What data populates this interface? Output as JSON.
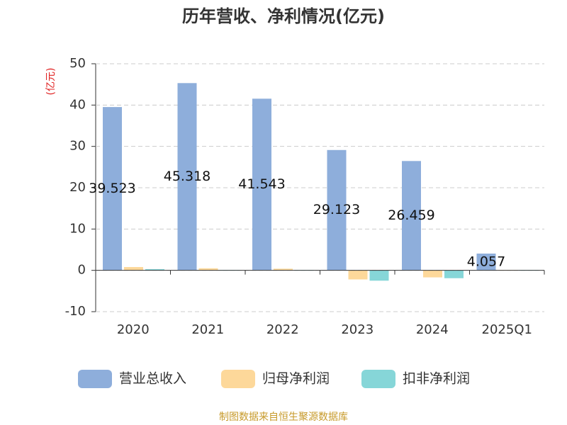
{
  "chart_data": {
    "type": "bar",
    "title": "历年营收、净利情况(亿元)",
    "y_label": "(亿元)",
    "categories": [
      "2020",
      "2021",
      "2022",
      "2023",
      "2024",
      "2025Q1"
    ],
    "series": [
      {
        "name": "营业总收入",
        "color": "#8eaedb",
        "values": [
          39.523,
          45.318,
          41.543,
          29.123,
          26.459,
          4.057
        ],
        "labels": true
      },
      {
        "name": "归母净利润",
        "color": "#fdd89a",
        "values": [
          0.8,
          0.5,
          0.4,
          -2.2,
          -1.7,
          0.1
        ]
      },
      {
        "name": "扣非净利润",
        "color": "#86d6d8",
        "values": [
          0.3,
          0.1,
          0.1,
          -2.5,
          -1.9,
          0.1
        ]
      }
    ],
    "ylim": [
      -10,
      50
    ],
    "yticks": [
      -10,
      0,
      10,
      20,
      30,
      40,
      50
    ],
    "grid": true,
    "legend": "bottom",
    "source": "制图数据来自恒生聚源数据库"
  }
}
